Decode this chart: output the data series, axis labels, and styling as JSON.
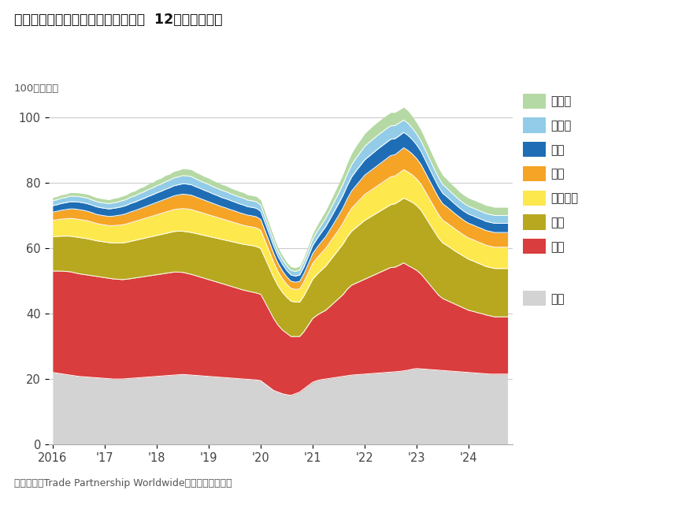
{
  "title": "服装：按来源国划分的美国进口额，  12个月滚动总额",
  "ylabel": "100十亿美元",
  "footnote": "数据来源：Trade Partnership Worldwide，美国人口普查局",
  "background_color": "#ffffff",
  "grid_color": "#cccccc",
  "ylim": [
    0,
    105
  ],
  "yticks": [
    0,
    20,
    40,
    60,
    80,
    100
  ],
  "xtick_positions": [
    2016,
    2017,
    2018,
    2019,
    2020,
    2021,
    2022,
    2023,
    2024
  ],
  "xtick_labels": [
    "2016",
    "'17",
    "'18",
    "'19",
    "'20",
    "'21",
    "'22",
    "'23",
    "'24"
  ],
  "legend_labels": [
    "墨西哥",
    "柬埔寨",
    "印尼",
    "印度",
    "孟加拉国",
    "越南",
    "中国",
    "其他"
  ],
  "colors": [
    "#b5d9a4",
    "#92cce8",
    "#1f6eb5",
    "#f5a426",
    "#fde84e",
    "#b8a820",
    "#d93d3d",
    "#d3d3d3"
  ],
  "x": [
    2016.0,
    2016.083,
    2016.167,
    2016.25,
    2016.333,
    2016.417,
    2016.5,
    2016.583,
    2016.667,
    2016.75,
    2016.833,
    2016.917,
    2017.0,
    2017.083,
    2017.167,
    2017.25,
    2017.333,
    2017.417,
    2017.5,
    2017.583,
    2017.667,
    2017.75,
    2017.833,
    2017.917,
    2018.0,
    2018.083,
    2018.167,
    2018.25,
    2018.333,
    2018.417,
    2018.5,
    2018.583,
    2018.667,
    2018.75,
    2018.833,
    2018.917,
    2019.0,
    2019.083,
    2019.167,
    2019.25,
    2019.333,
    2019.417,
    2019.5,
    2019.583,
    2019.667,
    2019.75,
    2019.833,
    2019.917,
    2020.0,
    2020.083,
    2020.167,
    2020.25,
    2020.333,
    2020.417,
    2020.5,
    2020.583,
    2020.667,
    2020.75,
    2020.833,
    2020.917,
    2021.0,
    2021.083,
    2021.167,
    2021.25,
    2021.333,
    2021.417,
    2021.5,
    2021.583,
    2021.667,
    2021.75,
    2021.833,
    2021.917,
    2022.0,
    2022.083,
    2022.167,
    2022.25,
    2022.333,
    2022.417,
    2022.5,
    2022.583,
    2022.667,
    2022.75,
    2022.833,
    2022.917,
    2023.0,
    2023.083,
    2023.167,
    2023.25,
    2023.333,
    2023.417,
    2023.5,
    2023.583,
    2023.667,
    2023.75,
    2023.833,
    2023.917,
    2024.0,
    2024.083,
    2024.167,
    2024.25,
    2024.333,
    2024.417,
    2024.5,
    2024.583,
    2024.667,
    2024.75
  ],
  "other": [
    22.0,
    21.8,
    21.6,
    21.4,
    21.2,
    21.0,
    20.8,
    20.7,
    20.6,
    20.5,
    20.4,
    20.3,
    20.2,
    20.1,
    20.0,
    20.0,
    20.0,
    20.1,
    20.2,
    20.3,
    20.4,
    20.5,
    20.6,
    20.7,
    20.8,
    20.9,
    21.0,
    21.1,
    21.2,
    21.3,
    21.4,
    21.3,
    21.2,
    21.1,
    21.0,
    20.9,
    20.8,
    20.7,
    20.6,
    20.5,
    20.4,
    20.3,
    20.2,
    20.1,
    20.0,
    19.9,
    19.8,
    19.7,
    19.5,
    18.5,
    17.5,
    16.5,
    16.0,
    15.5,
    15.2,
    15.0,
    15.5,
    16.0,
    17.0,
    18.0,
    19.0,
    19.5,
    19.8,
    20.0,
    20.2,
    20.4,
    20.6,
    20.8,
    21.0,
    21.2,
    21.3,
    21.4,
    21.5,
    21.6,
    21.7,
    21.8,
    21.9,
    22.0,
    22.1,
    22.2,
    22.3,
    22.5,
    22.7,
    23.0,
    23.2,
    23.1,
    23.0,
    22.9,
    22.8,
    22.7,
    22.6,
    22.5,
    22.4,
    22.3,
    22.2,
    22.1,
    22.0,
    21.9,
    21.8,
    21.7,
    21.6,
    21.5,
    21.5,
    21.5,
    21.5,
    21.5
  ],
  "china": [
    31.0,
    31.2,
    31.4,
    31.5,
    31.6,
    31.5,
    31.4,
    31.3,
    31.2,
    31.1,
    31.0,
    30.9,
    30.8,
    30.7,
    30.6,
    30.5,
    30.4,
    30.4,
    30.5,
    30.6,
    30.7,
    30.8,
    30.9,
    31.0,
    31.1,
    31.2,
    31.3,
    31.4,
    31.5,
    31.4,
    31.2,
    31.0,
    30.8,
    30.5,
    30.2,
    29.9,
    29.6,
    29.3,
    29.0,
    28.7,
    28.4,
    28.1,
    27.8,
    27.5,
    27.2,
    27.0,
    26.8,
    26.6,
    26.4,
    25.0,
    23.5,
    22.0,
    20.5,
    19.5,
    18.8,
    18.0,
    17.5,
    17.0,
    17.5,
    18.5,
    19.5,
    20.0,
    20.5,
    21.0,
    22.0,
    23.0,
    24.0,
    25.0,
    26.5,
    27.5,
    28.0,
    28.5,
    29.0,
    29.5,
    30.0,
    30.5,
    31.0,
    31.5,
    32.0,
    32.0,
    32.5,
    33.0,
    32.0,
    31.0,
    30.0,
    29.0,
    27.5,
    26.0,
    24.5,
    23.0,
    22.0,
    21.5,
    21.0,
    20.5,
    20.0,
    19.5,
    19.0,
    18.8,
    18.5,
    18.3,
    18.0,
    17.8,
    17.5,
    17.5,
    17.5,
    17.5
  ],
  "vietnam": [
    10.5,
    10.6,
    10.7,
    10.8,
    10.9,
    11.0,
    11.1,
    11.1,
    11.1,
    11.0,
    10.9,
    10.9,
    10.9,
    10.9,
    11.0,
    11.1,
    11.2,
    11.3,
    11.4,
    11.5,
    11.6,
    11.7,
    11.8,
    11.9,
    12.0,
    12.1,
    12.2,
    12.3,
    12.4,
    12.5,
    12.6,
    12.7,
    12.8,
    12.9,
    13.0,
    13.1,
    13.2,
    13.3,
    13.4,
    13.5,
    13.6,
    13.7,
    13.8,
    13.9,
    14.0,
    14.1,
    14.2,
    14.2,
    14.0,
    13.5,
    13.0,
    12.5,
    12.0,
    11.5,
    11.0,
    10.8,
    10.5,
    10.5,
    11.0,
    11.5,
    12.0,
    12.5,
    13.0,
    13.5,
    14.0,
    14.5,
    15.0,
    15.5,
    16.0,
    16.5,
    17.0,
    17.5,
    18.0,
    18.2,
    18.4,
    18.6,
    18.8,
    19.0,
    19.2,
    19.4,
    19.6,
    19.8,
    20.0,
    20.0,
    19.8,
    19.5,
    19.0,
    18.5,
    18.0,
    17.5,
    17.0,
    16.8,
    16.5,
    16.2,
    16.0,
    15.8,
    15.6,
    15.4,
    15.2,
    15.0,
    14.8,
    14.8,
    14.8,
    14.8,
    14.8,
    14.8
  ],
  "bangladesh": [
    5.0,
    5.1,
    5.2,
    5.3,
    5.4,
    5.5,
    5.5,
    5.5,
    5.5,
    5.4,
    5.3,
    5.2,
    5.2,
    5.2,
    5.3,
    5.4,
    5.5,
    5.6,
    5.7,
    5.8,
    5.9,
    6.0,
    6.1,
    6.2,
    6.3,
    6.4,
    6.5,
    6.6,
    6.7,
    6.8,
    6.9,
    7.0,
    7.0,
    6.9,
    6.8,
    6.7,
    6.6,
    6.5,
    6.4,
    6.3,
    6.2,
    6.1,
    6.0,
    5.9,
    5.8,
    5.7,
    5.7,
    5.7,
    5.6,
    5.3,
    5.0,
    4.7,
    4.4,
    4.2,
    4.0,
    3.9,
    3.9,
    4.0,
    4.2,
    4.5,
    4.8,
    5.0,
    5.2,
    5.4,
    5.6,
    5.8,
    6.0,
    6.3,
    6.6,
    7.0,
    7.3,
    7.6,
    7.9,
    8.0,
    8.1,
    8.2,
    8.3,
    8.4,
    8.5,
    8.5,
    8.6,
    8.7,
    8.6,
    8.4,
    8.2,
    8.0,
    7.8,
    7.6,
    7.4,
    7.2,
    7.0,
    6.9,
    6.8,
    6.7,
    6.6,
    6.5,
    6.5,
    6.5,
    6.5,
    6.5,
    6.5,
    6.5,
    6.5,
    6.5,
    6.5,
    6.5
  ],
  "india": [
    2.5,
    2.6,
    2.7,
    2.8,
    2.9,
    3.0,
    3.0,
    3.0,
    2.9,
    2.9,
    2.8,
    2.8,
    2.8,
    2.8,
    2.9,
    3.0,
    3.1,
    3.2,
    3.3,
    3.3,
    3.4,
    3.5,
    3.6,
    3.7,
    3.8,
    3.9,
    4.0,
    4.1,
    4.2,
    4.3,
    4.4,
    4.4,
    4.4,
    4.3,
    4.2,
    4.1,
    4.0,
    3.9,
    3.8,
    3.7,
    3.7,
    3.6,
    3.6,
    3.5,
    3.5,
    3.4,
    3.4,
    3.4,
    3.3,
    3.1,
    2.9,
    2.7,
    2.5,
    2.4,
    2.3,
    2.2,
    2.2,
    2.3,
    2.5,
    2.7,
    3.0,
    3.2,
    3.4,
    3.6,
    3.8,
    4.1,
    4.4,
    4.7,
    5.0,
    5.3,
    5.5,
    5.7,
    5.9,
    6.0,
    6.1,
    6.2,
    6.3,
    6.4,
    6.5,
    6.5,
    6.6,
    6.7,
    6.6,
    6.4,
    6.2,
    6.0,
    5.8,
    5.6,
    5.4,
    5.2,
    5.0,
    4.9,
    4.8,
    4.7,
    4.6,
    4.5,
    4.5,
    4.5,
    4.5,
    4.5,
    4.5,
    4.5,
    4.5,
    4.5,
    4.5,
    4.5
  ],
  "indonesia": [
    2.0,
    2.0,
    2.1,
    2.1,
    2.2,
    2.2,
    2.3,
    2.3,
    2.3,
    2.3,
    2.3,
    2.3,
    2.3,
    2.3,
    2.4,
    2.4,
    2.5,
    2.5,
    2.6,
    2.6,
    2.7,
    2.7,
    2.8,
    2.8,
    2.9,
    2.9,
    3.0,
    3.0,
    3.1,
    3.1,
    3.2,
    3.2,
    3.2,
    3.1,
    3.1,
    3.0,
    3.0,
    2.9,
    2.9,
    2.8,
    2.8,
    2.8,
    2.7,
    2.7,
    2.7,
    2.6,
    2.6,
    2.6,
    2.5,
    2.4,
    2.3,
    2.2,
    2.1,
    2.0,
    1.9,
    1.9,
    1.9,
    2.0,
    2.1,
    2.3,
    2.5,
    2.7,
    2.9,
    3.1,
    3.3,
    3.5,
    3.7,
    3.9,
    4.1,
    4.3,
    4.5,
    4.6,
    4.7,
    4.8,
    4.9,
    5.0,
    5.0,
    5.0,
    5.0,
    4.9,
    4.8,
    4.7,
    4.6,
    4.4,
    4.2,
    4.0,
    3.8,
    3.6,
    3.4,
    3.3,
    3.2,
    3.1,
    3.0,
    2.9,
    2.8,
    2.8,
    2.8,
    2.8,
    2.8,
    2.8,
    2.8,
    2.8,
    2.8,
    2.8,
    2.8,
    2.8
  ],
  "cambodia": [
    1.5,
    1.5,
    1.6,
    1.6,
    1.7,
    1.7,
    1.7,
    1.7,
    1.7,
    1.6,
    1.6,
    1.6,
    1.6,
    1.6,
    1.7,
    1.7,
    1.8,
    1.8,
    1.9,
    1.9,
    2.0,
    2.0,
    2.1,
    2.1,
    2.2,
    2.2,
    2.3,
    2.3,
    2.4,
    2.4,
    2.5,
    2.5,
    2.5,
    2.4,
    2.3,
    2.3,
    2.3,
    2.2,
    2.2,
    2.2,
    2.2,
    2.1,
    2.1,
    2.1,
    2.1,
    2.0,
    2.0,
    2.0,
    1.9,
    1.8,
    1.7,
    1.6,
    1.5,
    1.5,
    1.4,
    1.4,
    1.4,
    1.5,
    1.6,
    1.7,
    1.9,
    2.1,
    2.3,
    2.5,
    2.7,
    2.9,
    3.1,
    3.3,
    3.5,
    3.7,
    3.9,
    4.0,
    4.1,
    4.2,
    4.2,
    4.2,
    4.2,
    4.2,
    4.1,
    4.0,
    3.9,
    3.8,
    3.7,
    3.5,
    3.3,
    3.2,
    3.1,
    3.0,
    2.9,
    2.8,
    2.7,
    2.6,
    2.5,
    2.5,
    2.4,
    2.4,
    2.4,
    2.4,
    2.4,
    2.4,
    2.4,
    2.4,
    2.4,
    2.4,
    2.4,
    2.4
  ],
  "mexico": [
    1.0,
    1.0,
    1.0,
    1.0,
    1.1,
    1.1,
    1.1,
    1.1,
    1.2,
    1.2,
    1.2,
    1.2,
    1.2,
    1.2,
    1.3,
    1.3,
    1.4,
    1.4,
    1.5,
    1.5,
    1.6,
    1.6,
    1.7,
    1.7,
    1.8,
    1.8,
    1.9,
    1.9,
    2.0,
    2.0,
    2.1,
    2.1,
    2.1,
    2.0,
    2.0,
    1.9,
    1.9,
    1.9,
    1.8,
    1.8,
    1.8,
    1.7,
    1.7,
    1.7,
    1.7,
    1.6,
    1.6,
    1.6,
    1.5,
    1.4,
    1.4,
    1.3,
    1.2,
    1.2,
    1.1,
    1.1,
    1.1,
    1.2,
    1.3,
    1.5,
    1.7,
    1.9,
    2.1,
    2.3,
    2.5,
    2.7,
    2.9,
    3.1,
    3.3,
    3.5,
    3.7,
    3.8,
    3.9,
    4.0,
    4.1,
    4.1,
    4.1,
    4.1,
    4.1,
    4.0,
    4.0,
    3.9,
    3.8,
    3.6,
    3.4,
    3.3,
    3.2,
    3.1,
    3.0,
    2.9,
    2.8,
    2.7,
    2.6,
    2.6,
    2.5,
    2.5,
    2.5,
    2.5,
    2.5,
    2.5,
    2.5,
    2.5,
    2.5,
    2.5,
    2.5,
    2.5
  ],
  "legend_gap_after_china": true
}
